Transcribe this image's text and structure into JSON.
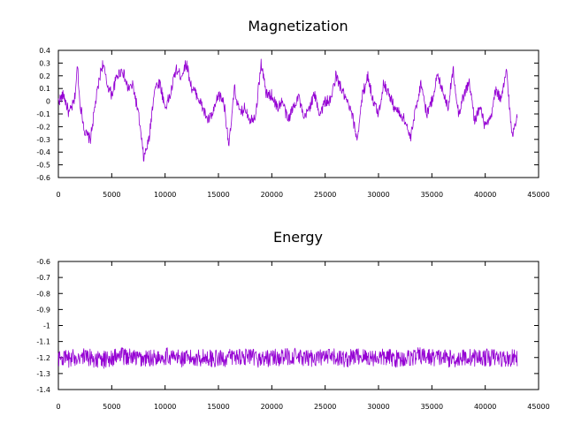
{
  "chart_data": [
    {
      "type": "line",
      "title": "Magnetization",
      "xlabel": "",
      "ylabel": "",
      "xlim": [
        0,
        45000
      ],
      "ylim": [
        -0.6,
        0.4
      ],
      "xticks": [
        0,
        5000,
        10000,
        15000,
        20000,
        25000,
        30000,
        35000,
        40000,
        45000
      ],
      "yticks": [
        -0.6,
        -0.5,
        -0.4,
        -0.3,
        -0.2,
        -0.1,
        0,
        0.1,
        0.2,
        0.3,
        0.4
      ],
      "x_tick_labels": [
        "0",
        "5000",
        "10000",
        "15000",
        "20000",
        "25000",
        "30000",
        "35000",
        "40000",
        "45000"
      ],
      "y_tick_labels": [
        "-0.6",
        "-0.5",
        "-0.4",
        "-0.3",
        "-0.2",
        "-0.1",
        "0",
        "0.1",
        "0.2",
        "0.3",
        "0.4"
      ],
      "grid": false,
      "color": "#9400d3",
      "series": [
        {
          "x": [
            0,
            500,
            1000,
            1500,
            1800,
            2000,
            2500,
            3000,
            3500,
            4000,
            4200,
            4500,
            5000,
            5500,
            6000,
            6500,
            7000,
            7500,
            8000,
            8500,
            9000,
            9500,
            10000,
            10500,
            11000,
            11500,
            12000,
            12500,
            13000,
            13500,
            14000,
            14500,
            15000,
            15500,
            16000,
            16500,
            17000,
            17500,
            18000,
            18500,
            19000,
            19500,
            20000,
            20500,
            21000,
            21500,
            22000,
            22500,
            23000,
            23500,
            24000,
            24500,
            25000,
            25500,
            26000,
            26500,
            27000,
            27500,
            28000,
            28500,
            29000,
            29500,
            30000,
            30500,
            31000,
            31500,
            32000,
            32500,
            33000,
            33500,
            34000,
            34500,
            35000,
            35500,
            36000,
            36500,
            37000,
            37500,
            38000,
            38500,
            39000,
            39500,
            40000,
            40500,
            41000,
            41500,
            42000,
            42500,
            43000
          ],
          "y": [
            0.0,
            0.05,
            -0.1,
            0.0,
            0.28,
            0.0,
            -0.25,
            -0.3,
            0.0,
            0.25,
            0.3,
            0.15,
            0.05,
            0.2,
            0.25,
            0.1,
            0.12,
            -0.1,
            -0.45,
            -0.3,
            0.1,
            0.15,
            -0.05,
            0.05,
            0.25,
            0.2,
            0.3,
            0.1,
            0.05,
            -0.05,
            -0.15,
            -0.1,
            0.05,
            0.0,
            -0.35,
            0.1,
            -0.1,
            -0.05,
            -0.15,
            -0.1,
            0.3,
            0.05,
            0.05,
            -0.05,
            0.0,
            -0.15,
            -0.05,
            0.05,
            -0.15,
            -0.05,
            0.05,
            -0.1,
            0.0,
            0.0,
            0.2,
            0.1,
            0.0,
            -0.1,
            -0.3,
            0.05,
            0.2,
            0.0,
            -0.1,
            0.15,
            0.05,
            -0.05,
            -0.1,
            -0.15,
            -0.3,
            -0.05,
            0.15,
            -0.1,
            0.0,
            0.2,
            0.1,
            -0.05,
            0.25,
            -0.1,
            0.05,
            0.15,
            -0.15,
            -0.05,
            -0.2,
            -0.15,
            0.1,
            0.0,
            0.25,
            -0.28,
            -0.1
          ]
        }
      ]
    },
    {
      "type": "line",
      "title": "Energy",
      "xlabel": "",
      "ylabel": "",
      "xlim": [
        0,
        45000
      ],
      "ylim": [
        -1.4,
        -0.6
      ],
      "xticks": [
        0,
        5000,
        10000,
        15000,
        20000,
        25000,
        30000,
        35000,
        40000,
        45000
      ],
      "yticks": [
        -1.4,
        -1.3,
        -1.2,
        -1.1,
        -1.0,
        -0.9,
        -0.8,
        -0.7,
        -0.6
      ],
      "x_tick_labels": [
        "0",
        "5000",
        "10000",
        "15000",
        "20000",
        "25000",
        "30000",
        "35000",
        "40000",
        "45000"
      ],
      "y_tick_labels": [
        "-1.4",
        "-1.3",
        "-1.2",
        "-1.1",
        "-1",
        "-0.9",
        "-0.8",
        "-0.7",
        "-0.6"
      ],
      "grid": false,
      "color": "#9400d3",
      "series": [
        {
          "x": [
            0,
            1000,
            2000,
            3000,
            4000,
            5000,
            6000,
            7000,
            8000,
            9000,
            10000,
            11000,
            12000,
            13000,
            14000,
            15000,
            16000,
            17000,
            18000,
            19000,
            20000,
            21000,
            22000,
            23000,
            24000,
            25000,
            26000,
            27000,
            28000,
            29000,
            30000,
            31000,
            32000,
            33000,
            34000,
            35000,
            36000,
            37000,
            38000,
            39000,
            40000,
            41000,
            42000,
            43000
          ],
          "y": [
            -1.2,
            -1.21,
            -1.19,
            -1.2,
            -1.22,
            -1.2,
            -1.19,
            -1.2,
            -1.21,
            -1.2,
            -1.19,
            -1.2,
            -1.21,
            -1.2,
            -1.2,
            -1.21,
            -1.2,
            -1.19,
            -1.2,
            -1.21,
            -1.2,
            -1.2,
            -1.19,
            -1.21,
            -1.2,
            -1.2,
            -1.2,
            -1.21,
            -1.19,
            -1.2,
            -1.2,
            -1.2,
            -1.21,
            -1.2,
            -1.19,
            -1.2,
            -1.2,
            -1.21,
            -1.2,
            -1.2,
            -1.2,
            -1.2,
            -1.21,
            -1.2
          ],
          "band": [
            -1.27,
            -1.14
          ]
        }
      ]
    }
  ]
}
